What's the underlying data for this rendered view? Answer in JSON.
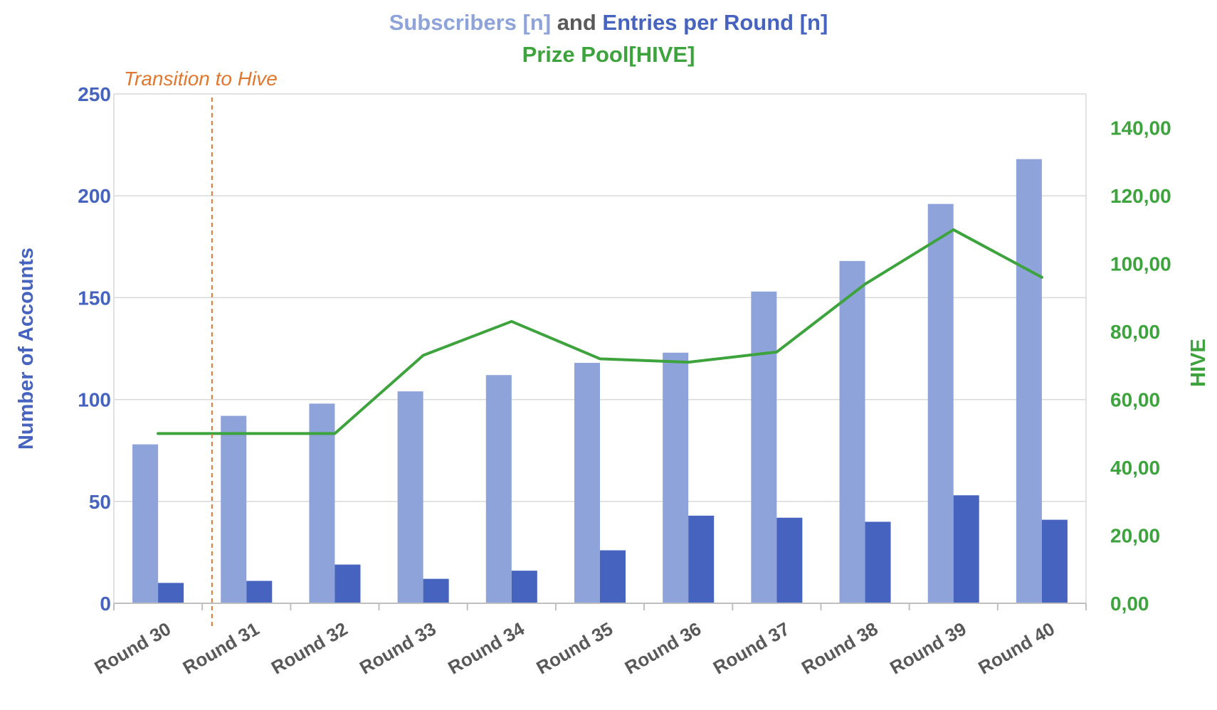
{
  "chart_data": {
    "type": "bar",
    "title_parts": [
      {
        "text": "Subscribers [n]",
        "color": "#8EA3DA"
      },
      {
        "text": " and ",
        "color": "#595959"
      },
      {
        "text": "Entries per Round [n]",
        "color": "#4664BF"
      }
    ],
    "subtitle": "Prize Pool[HIVE]",
    "categories": [
      "Round 30",
      "Round 31",
      "Round 32",
      "Round 33",
      "Round 34",
      "Round 35",
      "Round 36",
      "Round 37",
      "Round 38",
      "Round 39",
      "Round 40"
    ],
    "series": [
      {
        "kind": "bar",
        "axis": "left",
        "color": "#8EA3DA",
        "values": [
          78,
          92,
          98,
          104,
          112,
          118,
          123,
          153,
          168,
          196,
          218
        ]
      },
      {
        "kind": "bar",
        "axis": "left",
        "color": "#4664BF",
        "values": [
          10,
          11,
          19,
          12,
          16,
          26,
          43,
          42,
          40,
          53,
          41
        ]
      },
      {
        "kind": "line",
        "axis": "right",
        "color": "#3DA33D",
        "values": [
          50,
          50,
          50,
          73,
          83,
          72,
          71,
          74,
          94,
          110,
          96
        ]
      }
    ],
    "ylabel": "Number of Accounts",
    "ylabel_color": "#4664BF",
    "ylim": [
      0,
      250
    ],
    "yticks": [
      "0",
      "50",
      "100",
      "150",
      "200",
      "250"
    ],
    "y2label": "HIVE",
    "y2label_color": "#3DA33D",
    "y2lim": [
      0,
      150
    ],
    "y2ticks": [
      "0,00",
      "20,00",
      "40,00",
      "60,00",
      "80,00",
      "100,00",
      "120,00",
      "140,00"
    ],
    "grid": true,
    "annotation": {
      "text": "Transition to Hive",
      "color": "#E2772F",
      "between": [
        "Round 30",
        "Round 31"
      ]
    }
  }
}
